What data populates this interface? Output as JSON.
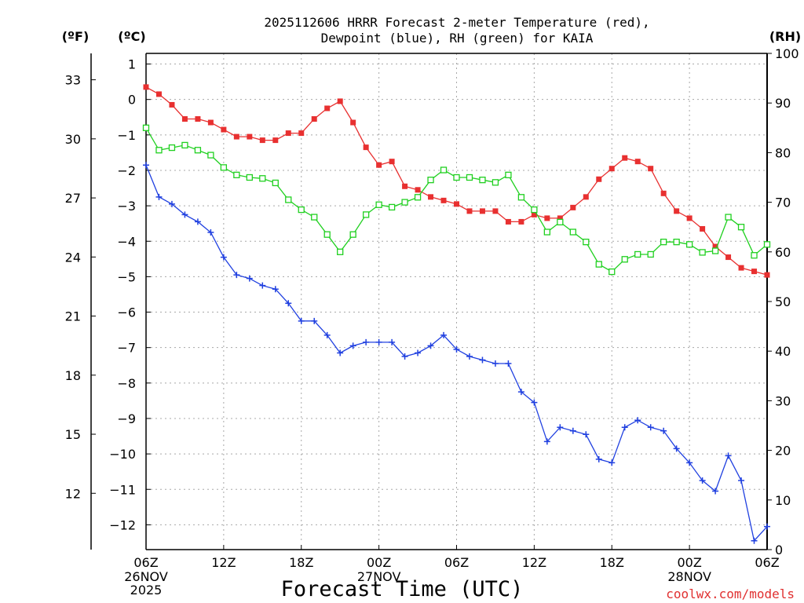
{
  "chart_data": {
    "type": "line",
    "title_line1": "2025112606 HRRR Forecast 2-meter Temperature (red),",
    "title_line2": "Dewpoint (blue), RH (green) for KAIA",
    "xlabel": "Forecast Time (UTC)",
    "credit": "coolwx.com/models",
    "unit_labels": {
      "fahrenheit": "(ºF)",
      "celsius": "(ºC)",
      "rh": "(RH)"
    },
    "x_range_hours": [
      0,
      48
    ],
    "x_ticks": [
      {
        "hour": 0,
        "label": "06Z",
        "sub1": "26NOV",
        "sub2": "2025"
      },
      {
        "hour": 6,
        "label": "12Z",
        "sub1": "",
        "sub2": ""
      },
      {
        "hour": 12,
        "label": "18Z",
        "sub1": "",
        "sub2": ""
      },
      {
        "hour": 18,
        "label": "00Z",
        "sub1": "27NOV",
        "sub2": ""
      },
      {
        "hour": 24,
        "label": "06Z",
        "sub1": "",
        "sub2": ""
      },
      {
        "hour": 30,
        "label": "12Z",
        "sub1": "",
        "sub2": ""
      },
      {
        "hour": 36,
        "label": "18Z",
        "sub1": "",
        "sub2": ""
      },
      {
        "hour": 42,
        "label": "00Z",
        "sub1": "28NOV",
        "sub2": ""
      },
      {
        "hour": 48,
        "label": "06Z",
        "sub1": "",
        "sub2": ""
      }
    ],
    "y_celsius": {
      "range": [
        -12.7,
        1.3
      ],
      "ticks": [
        1,
        0,
        -1,
        -2,
        -3,
        -4,
        -5,
        -6,
        -7,
        -8,
        -9,
        -10,
        -11,
        -12
      ]
    },
    "y_fahrenheit": {
      "ticks": [
        33,
        30,
        27,
        24,
        21,
        18,
        15,
        12
      ]
    },
    "y_rh": {
      "range": [
        0,
        100
      ],
      "ticks": [
        100,
        90,
        80,
        70,
        60,
        50,
        40,
        30,
        20,
        10,
        0
      ]
    },
    "series": [
      {
        "name": "2-meter Temperature",
        "axis": "celsius",
        "color": "#e83030",
        "marker": "filled-square",
        "values": [
          0.35,
          0.15,
          -0.15,
          -0.55,
          -0.55,
          -0.65,
          -0.85,
          -1.05,
          -1.05,
          -1.15,
          -1.15,
          -0.95,
          -0.95,
          -0.55,
          -0.25,
          -0.05,
          -0.65,
          -1.35,
          -1.85,
          -1.75,
          -2.45,
          -2.55,
          -2.75,
          -2.85,
          -2.95,
          -3.15,
          -3.15,
          -3.15,
          -3.45,
          -3.45,
          -3.25,
          -3.35,
          -3.35,
          -3.05,
          -2.75,
          -2.25,
          -1.95,
          -1.65,
          -1.75,
          -1.95,
          -2.65,
          -3.15,
          -3.35,
          -3.65,
          -4.15,
          -4.45,
          -4.75,
          -4.85,
          -4.95
        ]
      },
      {
        "name": "Dewpoint",
        "axis": "celsius",
        "color": "#2040e0",
        "marker": "plus",
        "values": [
          -1.85,
          -2.75,
          -2.95,
          -3.25,
          -3.45,
          -3.75,
          -4.45,
          -4.95,
          -5.05,
          -5.25,
          -5.35,
          -5.75,
          -6.25,
          -6.25,
          -6.65,
          -7.15,
          -6.95,
          -6.85,
          -6.85,
          -6.85,
          -7.25,
          -7.15,
          -6.95,
          -6.65,
          -7.05,
          -7.25,
          -7.35,
          -7.45,
          -7.45,
          -8.25,
          -8.55,
          -9.65,
          -9.25,
          -9.35,
          -9.45,
          -10.15,
          -10.25,
          -9.25,
          -9.05,
          -9.25,
          -9.35,
          -9.85,
          -10.25,
          -10.75,
          -11.05,
          -10.05,
          -10.75,
          -12.45,
          -12.05
        ]
      },
      {
        "name": "RH",
        "axis": "rh",
        "color": "#20d020",
        "marker": "open-square",
        "values": [
          85,
          80.5,
          81,
          81.5,
          80.5,
          79.5,
          77,
          75.5,
          75,
          74.8,
          73.9,
          70.5,
          68.5,
          67,
          63.5,
          60,
          63.5,
          67.5,
          69.5,
          69,
          70,
          71,
          74.5,
          76.5,
          75,
          75,
          74.5,
          74,
          75.5,
          71,
          68.5,
          64,
          66,
          64,
          62,
          57.5,
          56,
          58.5,
          59.5,
          59.5,
          62,
          62,
          61.5,
          59.9,
          60.2,
          67,
          65,
          59.3,
          61.5
        ]
      }
    ]
  }
}
